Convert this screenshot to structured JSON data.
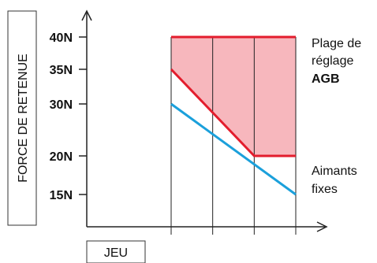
{
  "chart_data": {
    "type": "line",
    "ylabel": "FORCE DE RETENUE",
    "xlabel": "JEU",
    "y_ticks": [
      {
        "label": "40N",
        "value": 40
      },
      {
        "label": "35N",
        "value": 35
      },
      {
        "label": "30N",
        "value": 30
      },
      {
        "label": "20N",
        "value": 20
      },
      {
        "label": "15N",
        "value": 15
      }
    ],
    "x_ticks": [
      0,
      1,
      2,
      3
    ],
    "xlim": [
      0,
      3
    ],
    "series": [
      {
        "x": [
          0,
          3
        ],
        "y": [
          40,
          40
        ],
        "color": "#e31d2d"
      },
      {
        "x": [
          0,
          2,
          3
        ],
        "y": [
          35,
          20,
          20
        ],
        "color": "#e31d2d"
      },
      {
        "x": [
          0,
          3
        ],
        "y": [
          30,
          15
        ],
        "color": "#1ba0db"
      }
    ],
    "shaded_region": {
      "color": "#f7b7bd",
      "upper": [
        40,
        40,
        40
      ],
      "lower_x": [
        0,
        2,
        3
      ],
      "lower_y": [
        35,
        20,
        20
      ]
    },
    "annotations": {
      "region_label_line1": "Plage de",
      "region_label_line2": "réglage",
      "region_label_bold": "AGB",
      "fixed_label_line1": "Aimants",
      "fixed_label_line2": "fixes"
    }
  }
}
